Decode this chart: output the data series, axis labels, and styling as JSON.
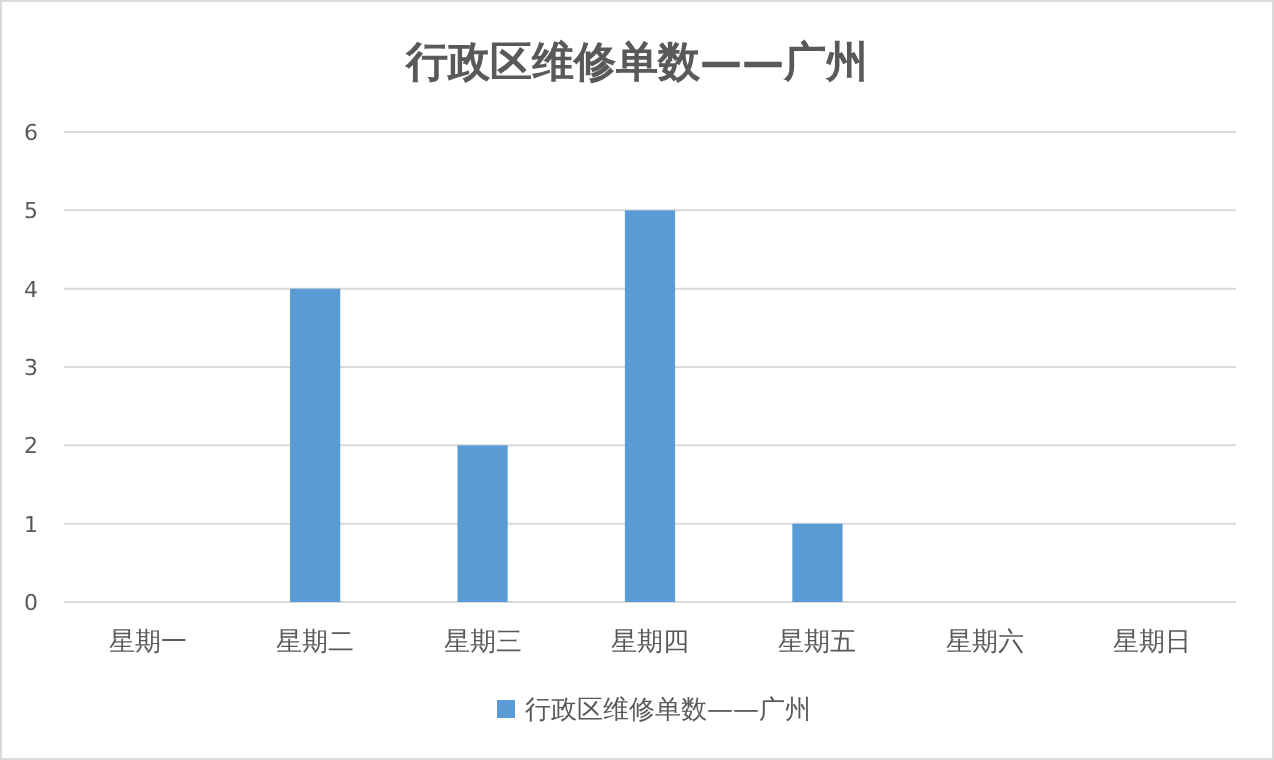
{
  "chart_data": {
    "type": "bar",
    "title": "行政区维修单数——广州",
    "categories": [
      "星期一",
      "星期二",
      "星期三",
      "星期四",
      "星期五",
      "星期六",
      "星期日"
    ],
    "series": [
      {
        "name": "行政区维修单数——广州",
        "color": "#5b9bd5",
        "values": [
          0,
          4,
          2,
          5,
          1,
          0,
          0
        ]
      }
    ],
    "ylim": [
      0,
      6
    ],
    "yticks": [
      0,
      1,
      2,
      3,
      4,
      5,
      6
    ],
    "grid": "y",
    "legend": "bottom"
  }
}
